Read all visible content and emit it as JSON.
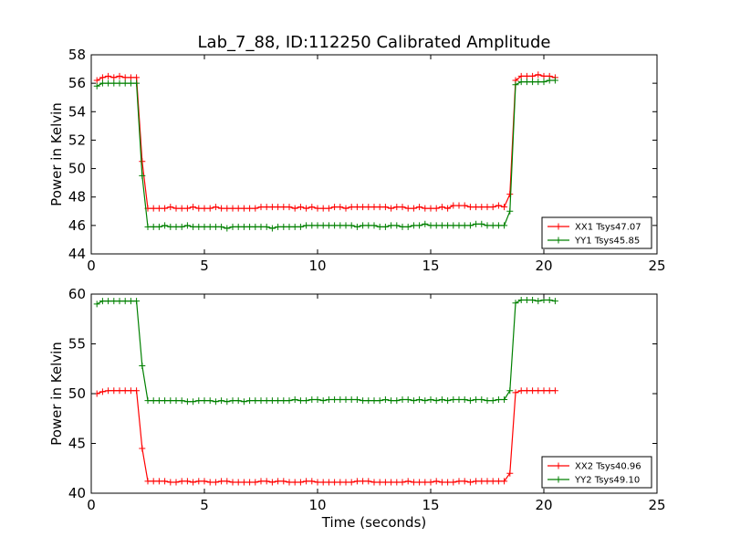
{
  "figure": {
    "title": "Lab_7_88, ID:112250 Calibrated Amplitude"
  },
  "chart_data": [
    {
      "type": "line",
      "title": "Lab_7_88, ID:112250 Calibrated Amplitude",
      "xlabel": "",
      "ylabel": "Power in Kelvin",
      "xlim": [
        0,
        25
      ],
      "ylim": [
        44,
        58
      ],
      "xticks": [
        "0",
        "5",
        "10",
        "15",
        "20",
        "25"
      ],
      "yticks": [
        "44",
        "46",
        "48",
        "50",
        "52",
        "54",
        "56",
        "58"
      ],
      "grid": false,
      "legend_position": "lower-right",
      "series": [
        {
          "name": "XX1 Tsys47.07",
          "color": "#ff0000",
          "x": [
            0.25,
            0.5,
            0.75,
            1.0,
            1.25,
            1.5,
            1.75,
            2.0,
            2.25,
            2.5,
            2.75,
            3.0,
            3.25,
            3.5,
            3.75,
            4.0,
            4.25,
            4.5,
            4.75,
            5.0,
            5.25,
            5.5,
            5.75,
            6.0,
            6.25,
            6.5,
            6.75,
            7.0,
            7.25,
            7.5,
            7.75,
            8.0,
            8.25,
            8.5,
            8.75,
            9.0,
            9.25,
            9.5,
            9.75,
            10.0,
            10.25,
            10.5,
            10.75,
            11.0,
            11.25,
            11.5,
            11.75,
            12.0,
            12.25,
            12.5,
            12.75,
            13.0,
            13.25,
            13.5,
            13.75,
            14.0,
            14.25,
            14.5,
            14.75,
            15.0,
            15.25,
            15.5,
            15.75,
            16.0,
            16.25,
            16.5,
            16.75,
            17.0,
            17.25,
            17.5,
            17.75,
            18.0,
            18.25,
            18.5,
            18.75,
            19.0,
            19.25,
            19.5,
            19.75,
            20.0,
            20.25,
            20.5
          ],
          "y": [
            56.2,
            56.4,
            56.5,
            56.4,
            56.5,
            56.4,
            56.4,
            56.4,
            50.5,
            47.2,
            47.2,
            47.2,
            47.2,
            47.3,
            47.2,
            47.2,
            47.2,
            47.3,
            47.2,
            47.2,
            47.2,
            47.3,
            47.2,
            47.2,
            47.2,
            47.2,
            47.2,
            47.2,
            47.2,
            47.3,
            47.3,
            47.3,
            47.3,
            47.3,
            47.3,
            47.2,
            47.3,
            47.2,
            47.3,
            47.2,
            47.2,
            47.2,
            47.3,
            47.3,
            47.2,
            47.3,
            47.3,
            47.3,
            47.3,
            47.3,
            47.3,
            47.3,
            47.2,
            47.3,
            47.3,
            47.2,
            47.2,
            47.3,
            47.2,
            47.2,
            47.2,
            47.3,
            47.2,
            47.4,
            47.4,
            47.4,
            47.3,
            47.3,
            47.3,
            47.3,
            47.3,
            47.4,
            47.3,
            48.2,
            56.2,
            56.5,
            56.5,
            56.5,
            56.6,
            56.5,
            56.5,
            56.4
          ]
        },
        {
          "name": "YY1 Tsys45.85",
          "color": "#008000",
          "x": [
            0.25,
            0.5,
            0.75,
            1.0,
            1.25,
            1.5,
            1.75,
            2.0,
            2.25,
            2.5,
            2.75,
            3.0,
            3.25,
            3.5,
            3.75,
            4.0,
            4.25,
            4.5,
            4.75,
            5.0,
            5.25,
            5.5,
            5.75,
            6.0,
            6.25,
            6.5,
            6.75,
            7.0,
            7.25,
            7.5,
            7.75,
            8.0,
            8.25,
            8.5,
            8.75,
            9.0,
            9.25,
            9.5,
            9.75,
            10.0,
            10.25,
            10.5,
            10.75,
            11.0,
            11.25,
            11.5,
            11.75,
            12.0,
            12.25,
            12.5,
            12.75,
            13.0,
            13.25,
            13.5,
            13.75,
            14.0,
            14.25,
            14.5,
            14.75,
            15.0,
            15.25,
            15.5,
            15.75,
            16.0,
            16.25,
            16.5,
            16.75,
            17.0,
            17.25,
            17.5,
            17.75,
            18.0,
            18.25,
            18.5,
            18.75,
            19.0,
            19.25,
            19.5,
            19.75,
            20.0,
            20.25,
            20.5
          ],
          "y": [
            55.8,
            56.0,
            56.0,
            56.0,
            56.0,
            56.0,
            56.0,
            56.0,
            49.5,
            45.9,
            45.9,
            45.9,
            46.0,
            45.9,
            45.9,
            45.9,
            46.0,
            45.9,
            45.9,
            45.9,
            45.9,
            45.9,
            45.9,
            45.8,
            45.9,
            45.9,
            45.9,
            45.9,
            45.9,
            45.9,
            45.9,
            45.8,
            45.9,
            45.9,
            45.9,
            45.9,
            45.9,
            46.0,
            46.0,
            46.0,
            46.0,
            46.0,
            46.0,
            46.0,
            46.0,
            46.0,
            45.9,
            46.0,
            46.0,
            46.0,
            45.9,
            45.9,
            46.0,
            46.0,
            45.9,
            45.9,
            46.0,
            46.0,
            46.1,
            46.0,
            46.0,
            46.0,
            46.0,
            46.0,
            46.0,
            46.0,
            46.0,
            46.1,
            46.1,
            46.0,
            46.0,
            46.0,
            46.0,
            47.0,
            55.9,
            56.1,
            56.1,
            56.1,
            56.1,
            56.1,
            56.2,
            56.2
          ]
        }
      ]
    },
    {
      "type": "line",
      "title": "",
      "xlabel": "Time (seconds)",
      "ylabel": "Power in Kelvin",
      "xlim": [
        0,
        25
      ],
      "ylim": [
        40,
        60
      ],
      "xticks": [
        "0",
        "5",
        "10",
        "15",
        "20",
        "25"
      ],
      "yticks": [
        "40",
        "45",
        "50",
        "55",
        "60"
      ],
      "grid": false,
      "legend_position": "lower-right",
      "series": [
        {
          "name": "XX2 Tsys40.96",
          "color": "#ff0000",
          "x": [
            0.25,
            0.5,
            0.75,
            1.0,
            1.25,
            1.5,
            1.75,
            2.0,
            2.25,
            2.5,
            2.75,
            3.0,
            3.25,
            3.5,
            3.75,
            4.0,
            4.25,
            4.5,
            4.75,
            5.0,
            5.25,
            5.5,
            5.75,
            6.0,
            6.25,
            6.5,
            6.75,
            7.0,
            7.25,
            7.5,
            7.75,
            8.0,
            8.25,
            8.5,
            8.75,
            9.0,
            9.25,
            9.5,
            9.75,
            10.0,
            10.25,
            10.5,
            10.75,
            11.0,
            11.25,
            11.5,
            11.75,
            12.0,
            12.25,
            12.5,
            12.75,
            13.0,
            13.25,
            13.5,
            13.75,
            14.0,
            14.25,
            14.5,
            14.75,
            15.0,
            15.25,
            15.5,
            15.75,
            16.0,
            16.25,
            16.5,
            16.75,
            17.0,
            17.25,
            17.5,
            17.75,
            18.0,
            18.25,
            18.5,
            18.75,
            19.0,
            19.25,
            19.5,
            19.75,
            20.0,
            20.25,
            20.5
          ],
          "y": [
            50.0,
            50.2,
            50.3,
            50.3,
            50.3,
            50.3,
            50.3,
            50.3,
            44.5,
            41.2,
            41.2,
            41.2,
            41.2,
            41.1,
            41.1,
            41.2,
            41.2,
            41.1,
            41.2,
            41.2,
            41.1,
            41.1,
            41.2,
            41.2,
            41.1,
            41.1,
            41.1,
            41.1,
            41.1,
            41.2,
            41.2,
            41.1,
            41.2,
            41.2,
            41.1,
            41.1,
            41.1,
            41.2,
            41.2,
            41.1,
            41.1,
            41.1,
            41.1,
            41.1,
            41.1,
            41.1,
            41.2,
            41.2,
            41.2,
            41.1,
            41.1,
            41.1,
            41.1,
            41.1,
            41.1,
            41.2,
            41.1,
            41.1,
            41.1,
            41.1,
            41.2,
            41.1,
            41.1,
            41.1,
            41.2,
            41.2,
            41.1,
            41.2,
            41.2,
            41.2,
            41.2,
            41.2,
            41.2,
            42.0,
            50.1,
            50.3,
            50.3,
            50.3,
            50.3,
            50.3,
            50.3,
            50.3
          ]
        },
        {
          "name": "YY2 Tsys49.10",
          "color": "#008000",
          "x": [
            0.25,
            0.5,
            0.75,
            1.0,
            1.25,
            1.5,
            1.75,
            2.0,
            2.25,
            2.5,
            2.75,
            3.0,
            3.25,
            3.5,
            3.75,
            4.0,
            4.25,
            4.5,
            4.75,
            5.0,
            5.25,
            5.5,
            5.75,
            6.0,
            6.25,
            6.5,
            6.75,
            7.0,
            7.25,
            7.5,
            7.75,
            8.0,
            8.25,
            8.5,
            8.75,
            9.0,
            9.25,
            9.5,
            9.75,
            10.0,
            10.25,
            10.5,
            10.75,
            11.0,
            11.25,
            11.5,
            11.75,
            12.0,
            12.25,
            12.5,
            12.75,
            13.0,
            13.25,
            13.5,
            13.75,
            14.0,
            14.25,
            14.5,
            14.75,
            15.0,
            15.25,
            15.5,
            15.75,
            16.0,
            16.25,
            16.5,
            16.75,
            17.0,
            17.25,
            17.5,
            17.75,
            18.0,
            18.25,
            18.5,
            18.75,
            19.0,
            19.25,
            19.5,
            19.75,
            20.0,
            20.25,
            20.5
          ],
          "y": [
            59.0,
            59.3,
            59.3,
            59.3,
            59.3,
            59.3,
            59.3,
            59.3,
            52.8,
            49.3,
            49.3,
            49.3,
            49.3,
            49.3,
            49.3,
            49.3,
            49.2,
            49.2,
            49.3,
            49.3,
            49.3,
            49.2,
            49.3,
            49.2,
            49.3,
            49.3,
            49.2,
            49.3,
            49.3,
            49.3,
            49.3,
            49.3,
            49.3,
            49.3,
            49.3,
            49.4,
            49.3,
            49.3,
            49.4,
            49.4,
            49.3,
            49.4,
            49.4,
            49.4,
            49.4,
            49.4,
            49.4,
            49.3,
            49.3,
            49.3,
            49.3,
            49.4,
            49.3,
            49.3,
            49.4,
            49.4,
            49.3,
            49.4,
            49.3,
            49.4,
            49.3,
            49.4,
            49.3,
            49.4,
            49.4,
            49.4,
            49.3,
            49.4,
            49.4,
            49.3,
            49.3,
            49.4,
            49.4,
            50.3,
            59.1,
            59.4,
            59.4,
            59.4,
            59.3,
            59.4,
            59.4,
            59.3
          ]
        }
      ]
    }
  ]
}
